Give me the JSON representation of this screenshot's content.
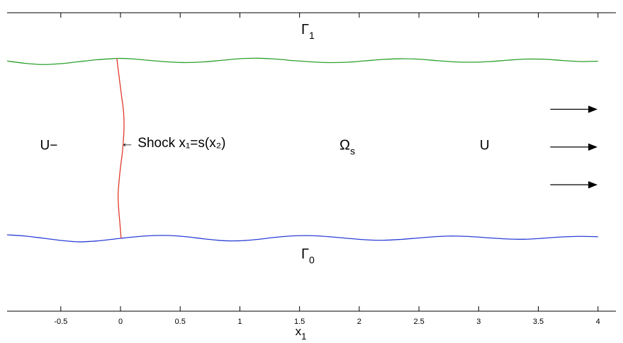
{
  "chart_data": {
    "type": "line",
    "x_axis": {
      "label_base": "x",
      "label_sub": "1",
      "range": [
        -0.95,
        4.15
      ],
      "ticks": [
        -0.5,
        0,
        0.5,
        1,
        1.5,
        2,
        2.5,
        3,
        3.5,
        4
      ],
      "tick_labels": [
        "-0.5",
        "0",
        "0.5",
        "1",
        "1.5",
        "2",
        "2.5",
        "3",
        "3.5",
        "4"
      ]
    },
    "y_range": [
      -0.7,
      1.0
    ],
    "grid": false,
    "series": [
      {
        "name": "upper-boundary",
        "color": "#2ca02c",
        "x": [
          -0.95,
          -0.8,
          -0.65,
          -0.5,
          -0.35,
          -0.2,
          -0.05,
          0.0,
          0.1,
          0.25,
          0.4,
          0.55,
          0.7,
          0.85,
          1.0,
          1.15,
          1.3,
          1.45,
          1.6,
          1.75,
          1.9,
          2.05,
          2.2,
          2.35,
          2.5,
          2.65,
          2.8,
          2.95,
          3.1,
          3.25,
          3.4,
          3.55,
          3.7,
          3.85,
          4.0
        ],
        "y": [
          0.725,
          0.712,
          0.705,
          0.71,
          0.721,
          0.732,
          0.739,
          0.74,
          0.737,
          0.728,
          0.72,
          0.716,
          0.72,
          0.729,
          0.738,
          0.741,
          0.736,
          0.727,
          0.72,
          0.716,
          0.718,
          0.726,
          0.734,
          0.738,
          0.735,
          0.727,
          0.72,
          0.718,
          0.722,
          0.73,
          0.736,
          0.735,
          0.728,
          0.722,
          0.724
        ]
      },
      {
        "name": "lower-boundary",
        "color": "#2b3fd6",
        "x": [
          -0.95,
          -0.8,
          -0.65,
          -0.5,
          -0.35,
          -0.2,
          -0.05,
          0.0,
          0.1,
          0.25,
          0.4,
          0.55,
          0.7,
          0.85,
          1.0,
          1.15,
          1.3,
          1.45,
          1.6,
          1.75,
          1.9,
          2.05,
          2.2,
          2.35,
          2.5,
          2.65,
          2.8,
          2.95,
          3.1,
          3.25,
          3.4,
          3.55,
          3.7,
          3.85,
          4.0
        ],
        "y": [
          -0.265,
          -0.272,
          -0.284,
          -0.297,
          -0.305,
          -0.3,
          -0.289,
          -0.285,
          -0.278,
          -0.27,
          -0.269,
          -0.276,
          -0.288,
          -0.298,
          -0.299,
          -0.291,
          -0.279,
          -0.271,
          -0.27,
          -0.276,
          -0.285,
          -0.293,
          -0.296,
          -0.291,
          -0.283,
          -0.275,
          -0.272,
          -0.276,
          -0.283,
          -0.289,
          -0.29,
          -0.284,
          -0.277,
          -0.274,
          -0.276
        ]
      },
      {
        "name": "shock",
        "color": "#e03b2b",
        "x": [
          -0.03,
          -0.02,
          -0.005,
          0.01,
          0.025,
          0.03,
          0.025,
          0.015,
          0.0,
          -0.012,
          -0.02,
          -0.015,
          -0.005,
          0.005
        ],
        "y": [
          0.74,
          0.68,
          0.6,
          0.52,
          0.44,
          0.36,
          0.28,
          0.2,
          0.12,
          0.04,
          -0.04,
          -0.12,
          -0.2,
          -0.285
        ]
      }
    ],
    "annotations": [
      {
        "id": "gamma1",
        "base": "Γ",
        "sub": "1",
        "x": 1.57,
        "y": 0.88
      },
      {
        "id": "gamma0",
        "base": "Γ",
        "sub": "0",
        "x": 1.57,
        "y": -0.4
      },
      {
        "id": "u-minus",
        "text": "U−",
        "x": -0.6,
        "y": 0.22
      },
      {
        "id": "shock-label",
        "text": "← Shock x₁=s(x₂)",
        "x": 0.0,
        "y": 0.235
      },
      {
        "id": "omega-s",
        "base": "Ω",
        "sub": "s",
        "x": 1.9,
        "y": 0.22
      },
      {
        "id": "u-label",
        "text": "U",
        "x": 3.05,
        "y": 0.22
      }
    ],
    "arrows": [
      {
        "x_start": 3.6,
        "x_end": 4.0,
        "y": 0.45
      },
      {
        "x_start": 3.6,
        "x_end": 4.0,
        "y": 0.235
      },
      {
        "x_start": 3.6,
        "x_end": 4.0,
        "y": 0.02
      }
    ]
  }
}
